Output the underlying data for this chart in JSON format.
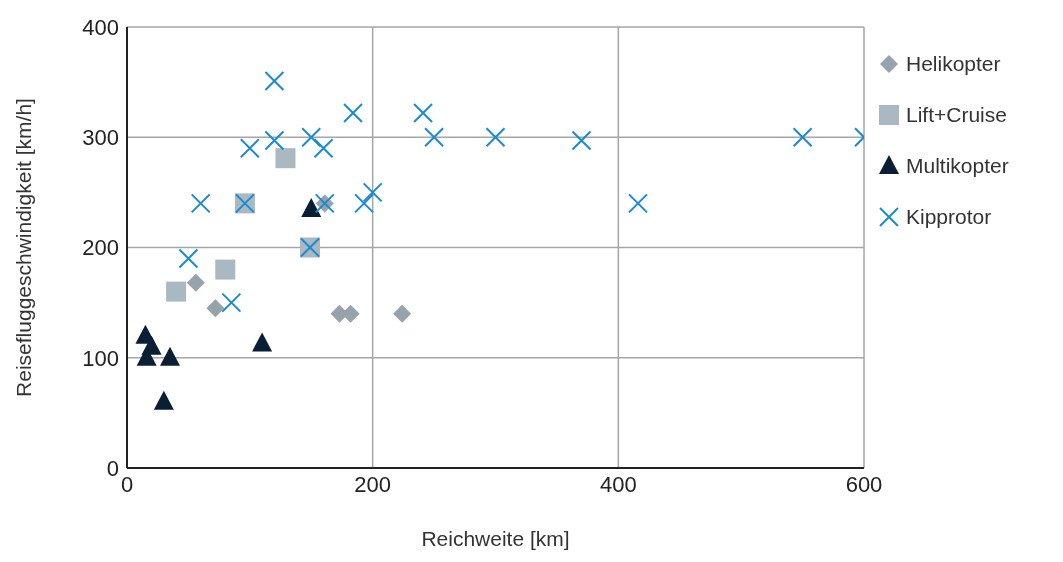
{
  "chart_data": {
    "type": "scatter",
    "xlabel": "Reichweite [km]",
    "ylabel": "Reisefluggeschwindigkeit [km/h]",
    "xlim": [
      0,
      600
    ],
    "xticks": [
      0,
      200,
      400,
      600
    ],
    "ylim": [
      0,
      400
    ],
    "yticks": [
      0,
      100,
      200,
      300,
      400
    ],
    "grid": true,
    "legend": "right",
    "series": [
      {
        "name": "Helikopter",
        "color": "#97a3ab",
        "marker": "diamond",
        "x": [
          56,
          72,
          161,
          173,
          182,
          224
        ],
        "values": [
          168,
          145,
          240,
          140,
          140,
          140
        ]
      },
      {
        "name": "Lift+Cruise",
        "color": "#aab8c2",
        "marker": "square",
        "x": [
          40,
          80,
          96,
          129,
          149
        ],
        "values": [
          160,
          180,
          240,
          281,
          200
        ]
      },
      {
        "name": "Multikopter",
        "color": "#0a1f33",
        "marker": "triangle",
        "x": [
          15,
          20,
          16,
          35,
          30,
          110,
          150
        ],
        "values": [
          120,
          110,
          100,
          100,
          60,
          113,
          235
        ]
      },
      {
        "name": "Kipprotor",
        "color": "#1a8ad4",
        "marker": "cross",
        "x": [
          120,
          50,
          60,
          85,
          100,
          96,
          120,
          150,
          160,
          149,
          161,
          184,
          193,
          200,
          241,
          250,
          300,
          370,
          416,
          550,
          600
        ],
        "values": [
          351,
          190,
          240,
          150,
          290,
          240,
          297,
          300,
          290,
          200,
          240,
          322,
          240,
          250,
          322,
          300,
          300,
          297,
          240,
          300,
          300
        ]
      }
    ]
  }
}
